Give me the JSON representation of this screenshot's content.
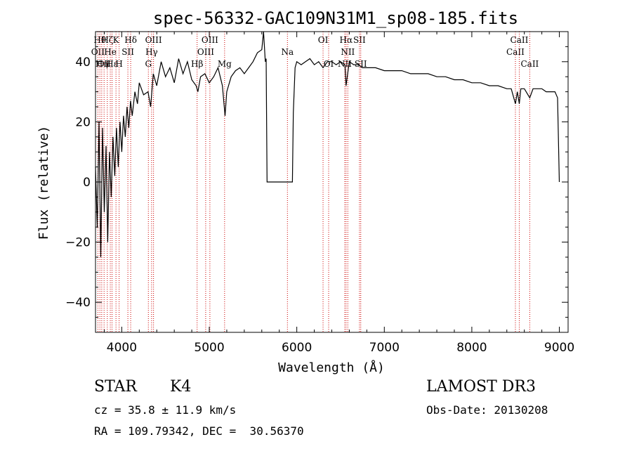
{
  "chart_data": {
    "type": "line",
    "title": "spec-56332-GAC109N31M1_sp08-185.fits",
    "xlabel": "Wavelength (Å)",
    "ylabel": "Flux (relative)",
    "xlim": [
      3700,
      9100
    ],
    "ylim": [
      -50,
      50
    ],
    "xticks": [
      4000,
      5000,
      6000,
      7000,
      8000,
      9000
    ],
    "yticks": [
      -40,
      -20,
      0,
      20,
      40
    ],
    "series": [
      {
        "name": "flux",
        "x": [
          3700,
          3720,
          3740,
          3760,
          3780,
          3800,
          3820,
          3840,
          3860,
          3880,
          3900,
          3920,
          3940,
          3960,
          3980,
          4000,
          4020,
          4040,
          4060,
          4080,
          4100,
          4120,
          4150,
          4180,
          4200,
          4250,
          4300,
          4330,
          4360,
          4400,
          4450,
          4500,
          4550,
          4600,
          4650,
          4700,
          4750,
          4800,
          4850,
          4870,
          4900,
          4950,
          5000,
          5050,
          5100,
          5150,
          5180,
          5200,
          5250,
          5300,
          5350,
          5400,
          5450,
          5500,
          5550,
          5600,
          5620,
          5640,
          5650,
          5660,
          5700,
          5800,
          5900,
          5950,
          5960,
          5980,
          6000,
          6050,
          6100,
          6150,
          6200,
          6250,
          6300,
          6350,
          6400,
          6450,
          6500,
          6550,
          6563,
          6600,
          6650,
          6700,
          6750,
          6800,
          6900,
          7000,
          7100,
          7200,
          7300,
          7400,
          7500,
          7600,
          7700,
          7800,
          7900,
          8000,
          8100,
          8200,
          8300,
          8400,
          8450,
          8498,
          8520,
          8542,
          8560,
          8600,
          8662,
          8700,
          8750,
          8800,
          8850,
          8900,
          8950,
          8980,
          9000
        ],
        "y": [
          5,
          -15,
          20,
          -25,
          18,
          -10,
          12,
          -20,
          10,
          -5,
          15,
          2,
          18,
          5,
          20,
          10,
          22,
          15,
          25,
          18,
          27,
          22,
          30,
          26,
          33,
          29,
          30,
          25,
          36,
          32,
          40,
          35,
          38,
          33,
          41,
          36,
          40,
          34,
          32,
          30,
          35,
          36,
          33,
          35,
          38,
          32,
          22,
          30,
          35,
          37,
          38,
          36,
          38,
          40,
          43,
          44,
          50,
          40,
          41,
          0,
          0,
          0,
          0,
          0,
          23,
          38,
          40,
          39,
          40,
          41,
          39,
          40,
          38,
          40,
          40,
          39,
          40,
          39,
          32,
          40,
          39,
          39,
          38,
          38,
          38,
          37,
          37,
          37,
          36,
          36,
          36,
          35,
          35,
          34,
          34,
          33,
          33,
          32,
          32,
          31,
          31,
          26,
          30,
          26,
          31,
          31,
          28,
          31,
          31,
          31,
          30,
          30,
          30,
          28,
          0
        ]
      }
    ],
    "line_markers": [
      {
        "x": 3727,
        "label": "OII",
        "row": 1
      },
      {
        "x": 3750,
        "label": "Hθ",
        "row": 0
      },
      {
        "x": 3771,
        "label": "Hη",
        "row": 2
      },
      {
        "x": 3798,
        "label": "OII",
        "row": 2
      },
      {
        "x": 3835,
        "label": "Hζ",
        "row": 0
      },
      {
        "x": 3869,
        "label": "He",
        "row": 1
      },
      {
        "x": 3889,
        "label": "Hε",
        "row": 2
      },
      {
        "x": 3934,
        "label": "K",
        "row": 0
      },
      {
        "x": 3970,
        "label": "H",
        "row": 2
      },
      {
        "x": 4070,
        "label": "SII",
        "row": 1
      },
      {
        "x": 4102,
        "label": "Hδ",
        "row": 0
      },
      {
        "x": 4304,
        "label": "G",
        "row": 2
      },
      {
        "x": 4341,
        "label": "Hγ",
        "row": 1
      },
      {
        "x": 4363,
        "label": "OIII",
        "row": 0
      },
      {
        "x": 4861,
        "label": "Hβ",
        "row": 2
      },
      {
        "x": 4959,
        "label": "OIII",
        "row": 1
      },
      {
        "x": 5007,
        "label": "OIII",
        "row": 0
      },
      {
        "x": 5175,
        "label": "Mg",
        "row": 2
      },
      {
        "x": 5893,
        "label": "Na",
        "row": 1
      },
      {
        "x": 6300,
        "label": "OI",
        "row": 0
      },
      {
        "x": 6364,
        "label": "OI",
        "row": 2
      },
      {
        "x": 6548,
        "label": "NII",
        "row": 2
      },
      {
        "x": 6563,
        "label": "Hα",
        "row": 0
      },
      {
        "x": 6583,
        "label": "NII",
        "row": 1
      },
      {
        "x": 6716,
        "label": "SII",
        "row": 0
      },
      {
        "x": 6731,
        "label": "SII",
        "row": 2
      },
      {
        "x": 8498,
        "label": "CaII",
        "row": 1
      },
      {
        "x": 8542,
        "label": "CaII",
        "row": 0
      },
      {
        "x": 8662,
        "label": "CaII",
        "row": 2
      }
    ],
    "colors": {
      "spectrum": "#000000",
      "markers": "#cc0000",
      "axes": "#000000"
    }
  },
  "info": {
    "class_label": "STAR",
    "subclass": "K4",
    "redshift": "cz = 35.8 ± 11.9 km/s",
    "coords": "RA = 109.79342, DEC =  30.56370",
    "survey": "LAMOST DR3",
    "obs_date": "Obs-Date: 20130208"
  }
}
